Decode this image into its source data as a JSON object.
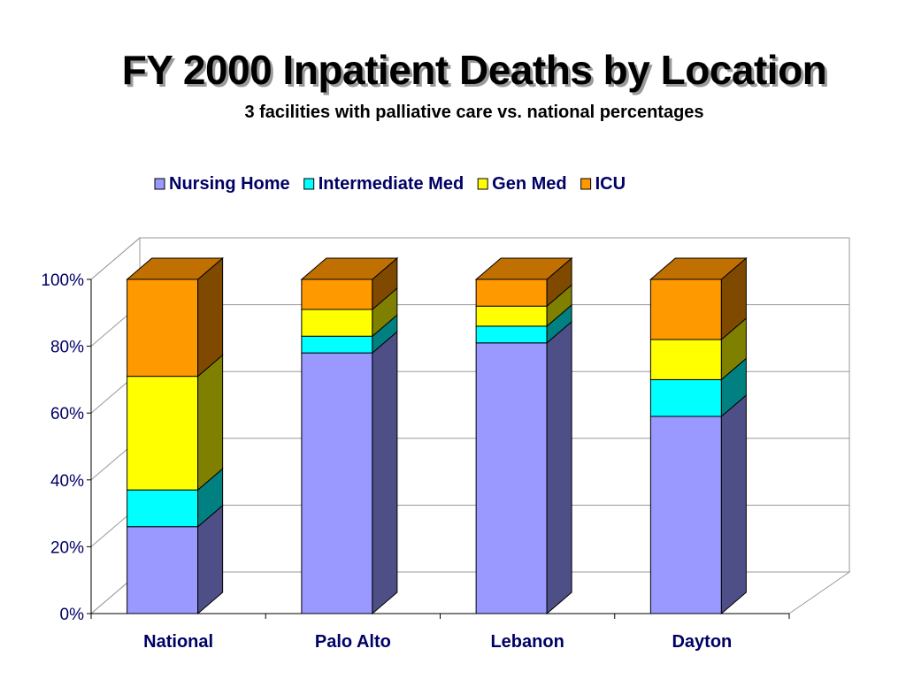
{
  "slide": {
    "title": "FY 2000 Inpatient Deaths by Location",
    "subtitle": "3 facilities with palliative care vs. national percentages"
  },
  "chart_data": {
    "type": "bar",
    "stacked": true,
    "percent_stacked": true,
    "three_d": true,
    "categories": [
      "National",
      "Palo Alto",
      "Lebanon",
      "Dayton"
    ],
    "series": [
      {
        "name": "Nursing Home",
        "values": [
          26,
          78,
          81,
          59
        ],
        "color": "#9999ff",
        "side_color": "#4f4f88",
        "top_color": "#8080d8"
      },
      {
        "name": "Intermediate Med",
        "values": [
          11,
          5,
          5,
          11
        ],
        "color": "#00ffff",
        "side_color": "#008080",
        "top_color": "#00c0c0"
      },
      {
        "name": "Gen Med",
        "values": [
          34,
          8,
          6,
          12
        ],
        "color": "#ffff00",
        "side_color": "#808000",
        "top_color": "#c8c800"
      },
      {
        "name": "ICU",
        "values": [
          29,
          9,
          8,
          18
        ],
        "color": "#ff9900",
        "side_color": "#7f4a00",
        "top_color": "#c07000"
      }
    ],
    "y_ticks": [
      "0%",
      "20%",
      "40%",
      "60%",
      "80%",
      "100%"
    ],
    "ylim": [
      0,
      100
    ],
    "legend_position": "top",
    "grid": true,
    "title": "",
    "xlabel": "",
    "ylabel": ""
  }
}
